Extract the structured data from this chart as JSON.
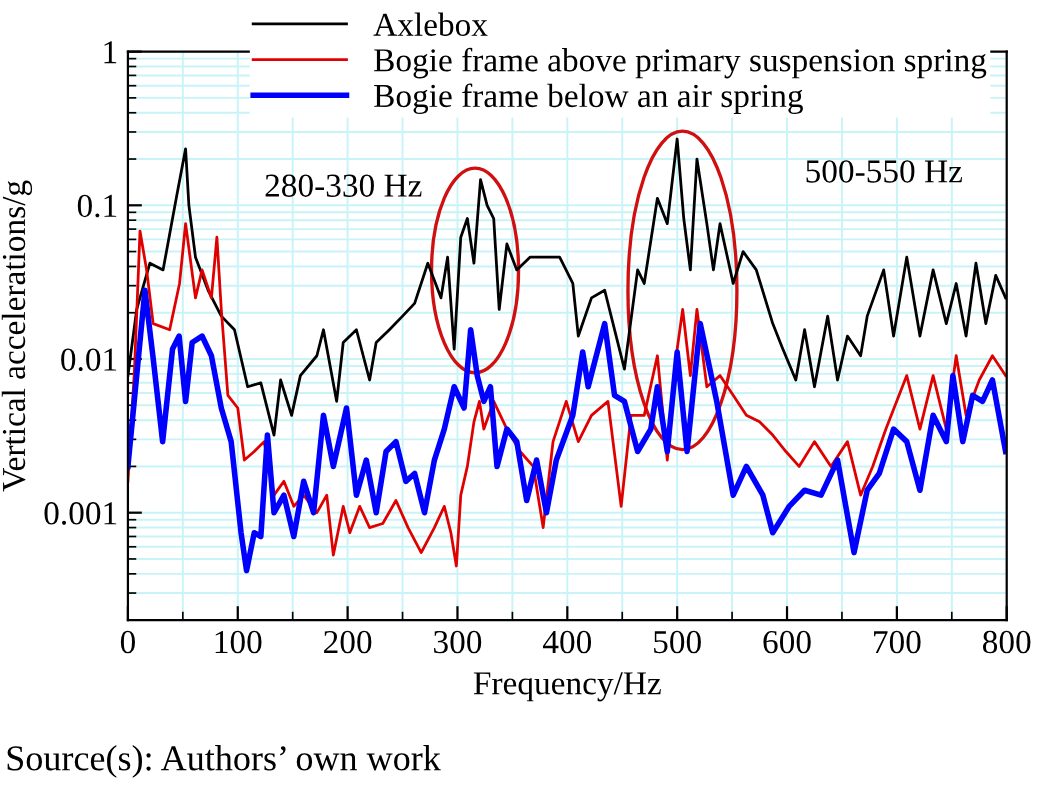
{
  "chart_data": {
    "type": "line",
    "xlabel": "Frequency/Hz",
    "ylabel": "Vertical accelerations/g",
    "xlim": [
      0,
      800
    ],
    "xticks": [
      0,
      100,
      200,
      300,
      400,
      500,
      600,
      700,
      800
    ],
    "ylim": [
      0.0002,
      1
    ],
    "yticks": [
      0.001,
      0.01,
      0.1,
      1
    ],
    "log": true,
    "grid": true,
    "legend": "top",
    "marker": "none",
    "line_style": "solid",
    "annotations": [
      "280-330 Hz",
      "500-550 Hz",
      "Source(s): Authors’ own work"
    ],
    "series": [
      {
        "name": "Axlebox",
        "color": "#000000",
        "x": [
          0,
          8,
          20,
          32,
          44,
          52.5,
          55.5,
          61.5,
          73,
          85,
          97,
          109,
          121,
          133,
          139,
          149,
          157,
          172,
          178,
          190,
          196,
          208,
          220,
          226,
          238,
          250,
          261,
          273,
          285,
          291,
          297,
          303,
          309,
          315,
          321,
          327,
          333,
          338,
          345,
          354,
          366,
          378,
          393,
          405,
          410,
          422,
          434,
          452,
          464,
          470,
          482,
          491,
          500,
          506,
          512,
          518,
          527,
          533,
          539,
          551,
          560,
          572,
          587,
          596,
          608,
          616,
          625,
          637,
          646,
          655,
          667,
          673,
          688,
          697,
          709,
          721,
          733,
          745,
          754,
          763,
          772,
          781,
          790,
          799
        ],
        "values": [
          0.0078,
          0.021,
          0.042,
          0.038,
          0.111,
          0.233,
          0.1,
          0.046,
          0.028,
          0.019,
          0.0155,
          0.0066,
          0.007,
          0.0032,
          0.0073,
          0.0043,
          0.0078,
          0.0105,
          0.0155,
          0.0053,
          0.0128,
          0.0155,
          0.0073,
          0.0128,
          0.0155,
          0.019,
          0.023,
          0.042,
          0.025,
          0.046,
          0.0116,
          0.062,
          0.082,
          0.042,
          0.147,
          0.1,
          0.082,
          0.021,
          0.056,
          0.038,
          0.046,
          0.046,
          0.046,
          0.031,
          0.0141,
          0.025,
          0.028,
          0.0086,
          0.038,
          0.031,
          0.111,
          0.076,
          0.27,
          0.082,
          0.038,
          0.2,
          0.076,
          0.038,
          0.076,
          0.031,
          0.05,
          0.038,
          0.017,
          0.0117,
          0.0073,
          0.0155,
          0.0066,
          0.019,
          0.0073,
          0.0141,
          0.0105,
          0.019,
          0.038,
          0.0141,
          0.046,
          0.0141,
          0.038,
          0.017,
          0.031,
          0.0141,
          0.042,
          0.017,
          0.035,
          0.025
        ]
      },
      {
        "name": "Bogie frame above primary suspension spring",
        "color": "#e00000",
        "x": [
          0,
          6,
          11,
          17,
          23,
          38,
          47,
          52.5,
          61.5,
          67.5,
          76,
          81,
          85,
          91,
          100,
          106,
          115,
          124,
          133,
          142,
          151,
          160,
          172,
          181,
          187,
          196,
          202,
          211,
          220,
          232,
          244,
          255,
          267,
          279,
          288,
          294,
          299,
          303,
          309,
          315,
          320,
          324,
          333,
          345,
          357,
          369,
          378,
          387,
          399,
          410,
          422,
          437,
          449,
          458,
          470,
          482,
          491,
          500,
          505,
          512,
          518,
          527,
          539,
          551,
          563,
          575,
          587,
          599,
          611,
          625,
          640,
          655,
          667,
          678,
          690,
          709,
          721,
          733,
          745,
          754,
          763,
          775,
          787,
          799
        ],
        "values": [
          0.0016,
          0.0086,
          0.068,
          0.038,
          0.017,
          0.0155,
          0.031,
          0.076,
          0.025,
          0.038,
          0.025,
          0.062,
          0.021,
          0.0058,
          0.0048,
          0.0022,
          0.0025,
          0.0029,
          0.0013,
          0.0016,
          0.0011,
          0.0013,
          0.001,
          0.0013,
          0.00053,
          0.0011,
          0.00074,
          0.0011,
          0.0008,
          0.00085,
          0.0012,
          0.0008,
          0.00055,
          0.0008,
          0.0011,
          0.00074,
          0.00045,
          0.0013,
          0.002,
          0.0039,
          0.0053,
          0.0035,
          0.0053,
          0.0035,
          0.0025,
          0.002,
          0.0008,
          0.0029,
          0.0053,
          0.0029,
          0.0043,
          0.0053,
          0.0011,
          0.0043,
          0.0043,
          0.0105,
          0.0022,
          0.0116,
          0.021,
          0.0078,
          0.021,
          0.0066,
          0.0078,
          0.0058,
          0.0043,
          0.0039,
          0.0032,
          0.0025,
          0.002,
          0.0029,
          0.002,
          0.0029,
          0.0013,
          0.002,
          0.0035,
          0.0078,
          0.0035,
          0.0078,
          0.0035,
          0.0105,
          0.0043,
          0.0073,
          0.0105,
          0.0078
        ]
      },
      {
        "name": "Bogie frame below an air spring",
        "color": "#0000ff",
        "x": [
          0,
          8,
          15.5,
          22.7,
          31.6,
          40.6,
          46.6,
          52.5,
          58.5,
          67.5,
          76,
          85,
          94,
          103,
          108,
          115,
          121,
          127,
          133,
          142,
          151,
          160,
          169,
          178,
          187,
          199,
          208,
          217,
          226,
          235,
          244,
          253,
          261,
          270,
          279,
          288,
          297,
          306,
          312,
          318,
          324,
          330,
          336,
          345,
          354,
          363,
          372,
          381,
          390,
          405,
          414,
          419,
          434,
          443,
          452,
          464,
          476,
          482,
          491,
          500,
          509,
          521,
          536,
          551,
          563,
          578,
          587,
          602,
          616,
          631,
          646,
          661,
          673,
          684,
          697,
          709,
          721,
          733,
          745,
          751,
          760,
          769,
          778,
          787,
          799
        ],
        "values": [
          0.002,
          0.0078,
          0.028,
          0.0105,
          0.0029,
          0.0116,
          0.0141,
          0.0053,
          0.0128,
          0.0141,
          0.0105,
          0.0048,
          0.0029,
          0.00074,
          0.00042,
          0.00074,
          0.0007,
          0.0032,
          0.001,
          0.0013,
          0.0007,
          0.0016,
          0.001,
          0.0043,
          0.002,
          0.0048,
          0.0013,
          0.0022,
          0.001,
          0.0025,
          0.0029,
          0.0016,
          0.0018,
          0.001,
          0.0022,
          0.0035,
          0.0066,
          0.0048,
          0.0155,
          0.0078,
          0.0053,
          0.0066,
          0.002,
          0.0035,
          0.0029,
          0.0012,
          0.0022,
          0.001,
          0.0022,
          0.0043,
          0.0111,
          0.0066,
          0.017,
          0.0058,
          0.0053,
          0.0025,
          0.0035,
          0.0066,
          0.0025,
          0.0111,
          0.0025,
          0.017,
          0.0053,
          0.0013,
          0.002,
          0.0013,
          0.00074,
          0.0011,
          0.0014,
          0.0013,
          0.0022,
          0.00055,
          0.0014,
          0.0018,
          0.0035,
          0.0029,
          0.0014,
          0.0043,
          0.0029,
          0.0078,
          0.0029,
          0.0058,
          0.0053,
          0.0073,
          0.0025
        ]
      }
    ]
  }
}
